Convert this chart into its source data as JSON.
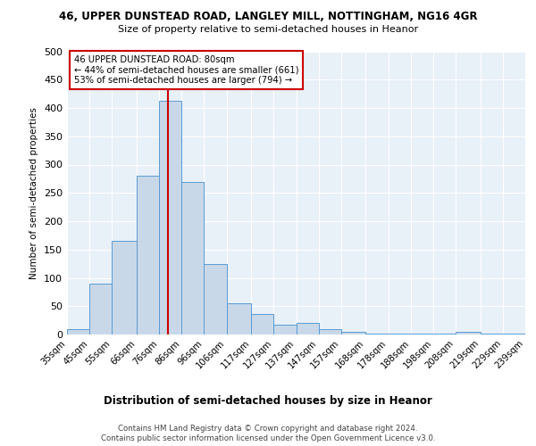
{
  "title1": "46, UPPER DUNSTEAD ROAD, LANGLEY MILL, NOTTINGHAM, NG16 4GR",
  "title2": "Size of property relative to semi-detached houses in Heanor",
  "xlabel": "Distribution of semi-detached houses by size in Heanor",
  "ylabel": "Number of semi-detached properties",
  "bin_labels": [
    "35sqm",
    "45sqm",
    "55sqm",
    "66sqm",
    "76sqm",
    "86sqm",
    "96sqm",
    "106sqm",
    "117sqm",
    "127sqm",
    "137sqm",
    "147sqm",
    "157sqm",
    "168sqm",
    "178sqm",
    "188sqm",
    "198sqm",
    "208sqm",
    "219sqm",
    "229sqm",
    "239sqm"
  ],
  "bin_edges": [
    35,
    45,
    55,
    66,
    76,
    86,
    96,
    106,
    117,
    127,
    137,
    147,
    157,
    168,
    178,
    188,
    198,
    208,
    219,
    229,
    239
  ],
  "bar_heights": [
    10,
    90,
    165,
    280,
    413,
    270,
    125,
    55,
    37,
    17,
    20,
    10,
    4,
    1,
    1,
    1,
    1,
    5,
    1,
    1,
    2
  ],
  "bar_color": "#c8d8e8",
  "bar_edge_color": "#5b9bd5",
  "marker_value": 80,
  "marker_color": "#cc0000",
  "annotation_title": "46 UPPER DUNSTEAD ROAD: 80sqm",
  "annotation_line1": "← 44% of semi-detached houses are smaller (661)",
  "annotation_line2": "53% of semi-detached houses are larger (794) →",
  "annotation_box_color": "#cc0000",
  "ylim": [
    0,
    500
  ],
  "yticks": [
    0,
    50,
    100,
    150,
    200,
    250,
    300,
    350,
    400,
    450,
    500
  ],
  "footer1": "Contains HM Land Registry data © Crown copyright and database right 2024.",
  "footer2": "Contains public sector information licensed under the Open Government Licence v3.0.",
  "plot_bg_color": "#e8f0f8"
}
